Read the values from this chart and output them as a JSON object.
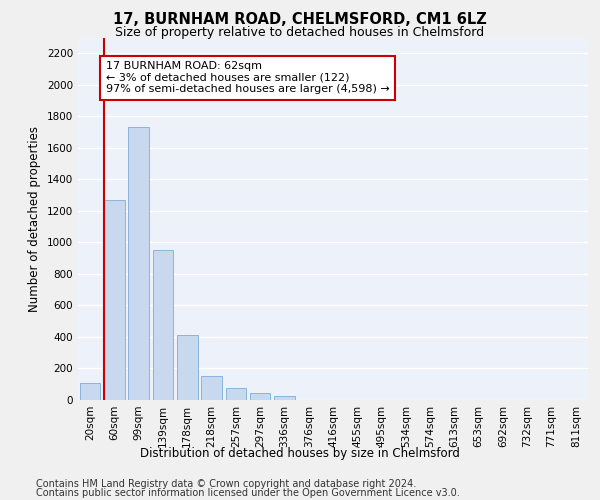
{
  "title_line1": "17, BURNHAM ROAD, CHELMSFORD, CM1 6LZ",
  "title_line2": "Size of property relative to detached houses in Chelmsford",
  "xlabel": "Distribution of detached houses by size in Chelmsford",
  "ylabel": "Number of detached properties",
  "bar_color": "#c8d9ef",
  "bar_edge_color": "#7bafd4",
  "categories": [
    "20sqm",
    "60sqm",
    "99sqm",
    "139sqm",
    "178sqm",
    "218sqm",
    "257sqm",
    "297sqm",
    "336sqm",
    "376sqm",
    "416sqm",
    "455sqm",
    "495sqm",
    "534sqm",
    "574sqm",
    "613sqm",
    "653sqm",
    "692sqm",
    "732sqm",
    "771sqm",
    "811sqm"
  ],
  "values": [
    105,
    1270,
    1730,
    950,
    415,
    150,
    75,
    45,
    25,
    0,
    0,
    0,
    0,
    0,
    0,
    0,
    0,
    0,
    0,
    0,
    0
  ],
  "ylim": [
    0,
    2300
  ],
  "yticks": [
    0,
    200,
    400,
    600,
    800,
    1000,
    1200,
    1400,
    1600,
    1800,
    2000,
    2200
  ],
  "vline_x": 0.55,
  "vline_color": "#cc0000",
  "annotation_text": "17 BURNHAM ROAD: 62sqm\n← 3% of detached houses are smaller (122)\n97% of semi-detached houses are larger (4,598) →",
  "annotation_box_color": "#ffffff",
  "annotation_box_edge_color": "#cc0000",
  "footer_line1": "Contains HM Land Registry data © Crown copyright and database right 2024.",
  "footer_line2": "Contains public sector information licensed under the Open Government Licence v3.0.",
  "bg_color": "#edf2fa",
  "grid_color": "#ffffff",
  "title_fontsize": 10.5,
  "subtitle_fontsize": 9,
  "axis_label_fontsize": 8.5,
  "tick_fontsize": 7.5,
  "annotation_fontsize": 8,
  "footer_fontsize": 7
}
